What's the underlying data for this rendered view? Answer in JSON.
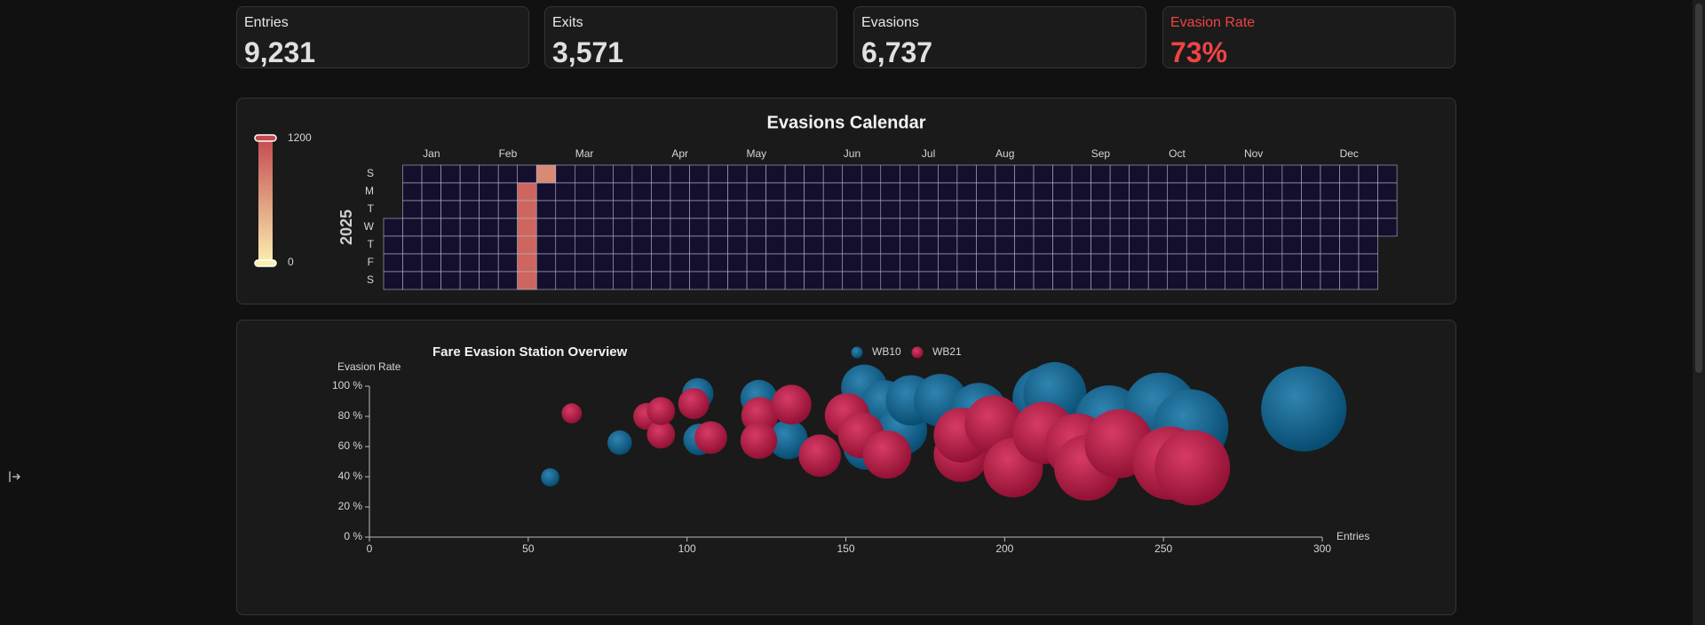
{
  "kpis": [
    {
      "label": "Entries",
      "value": "9,231"
    },
    {
      "label": "Exits",
      "value": "3,571"
    },
    {
      "label": "Evasions",
      "value": "6,737"
    },
    {
      "label": "Evasion Rate",
      "value": "73%"
    }
  ],
  "chart_data": [
    {
      "type": "calendar",
      "title": "Evasions Calendar",
      "year": 2025,
      "months": [
        "Jan",
        "Feb",
        "Mar",
        "Apr",
        "May",
        "Jun",
        "Jul",
        "Aug",
        "Sep",
        "Oct",
        "Nov",
        "Dec"
      ],
      "days": [
        "S",
        "M",
        "T",
        "W",
        "T",
        "F",
        "S"
      ],
      "visual_map": {
        "min": 0,
        "max": 1200,
        "colors": [
          "#fbefb0",
          "#c44a4f"
        ]
      },
      "empty_color": "#140f2c",
      "data": [
        {
          "date": "2025-02-17",
          "value": 1000
        },
        {
          "date": "2025-02-18",
          "value": 1000
        },
        {
          "date": "2025-02-19",
          "value": 1000
        },
        {
          "date": "2025-02-20",
          "value": 1000
        },
        {
          "date": "2025-02-21",
          "value": 1000
        },
        {
          "date": "2025-02-22",
          "value": 1000
        },
        {
          "date": "2025-02-23",
          "value": 737
        }
      ]
    },
    {
      "type": "scatter",
      "title": "Fare Evasion Station Overview",
      "x_label": "Entries",
      "y_label": "Evasion Rate",
      "xlim": [
        0,
        300
      ],
      "xticks": [
        0,
        50,
        100,
        150,
        200,
        250,
        300
      ],
      "ylim": [
        0,
        100
      ],
      "yticks": [
        {
          "value": 0,
          "label": "0 %"
        },
        {
          "value": 20,
          "label": "20 %"
        },
        {
          "value": 40,
          "label": "40 %"
        },
        {
          "value": 60,
          "label": "60 %"
        },
        {
          "value": 80,
          "label": "80 %"
        },
        {
          "value": 100,
          "label": "100 %"
        }
      ],
      "series": [
        {
          "name": "WB10",
          "color": "#0b6ea3",
          "x": [
            56.9,
            78.8,
            103.4,
            103.8,
            122.6,
            131.8,
            155.8,
            156.5,
            162.3,
            167.8,
            170.5,
            179.8,
            191.8,
            212.3,
            215.8,
            232.9,
            249,
            258.6,
            294.2
          ],
          "values": [
            39.6,
            62.6,
            95,
            64.7,
            92,
            64.7,
            99,
            60,
            88,
            71,
            90.6,
            90.6,
            83.5,
            92,
            95,
            78,
            85,
            73,
            85
          ]
        },
        {
          "name": "WB21",
          "color": "#d0184a",
          "x": [
            63.7,
            87.3,
            91.8,
            91.8,
            102.1,
            107.5,
            122.9,
            122.6,
            132.9,
            141.8,
            150.4,
            154.8,
            163,
            186.3,
            186.3,
            196.5,
            202.7,
            212.3,
            222.9,
            226,
            236,
            251.9,
            259.1
          ],
          "values": [
            82,
            80,
            68,
            83.5,
            88.5,
            66,
            80.6,
            64,
            87.8,
            54,
            80.6,
            67.6,
            54.7,
            54.7,
            67.6,
            74.8,
            46,
            69,
            60.4,
            46,
            61.9,
            49,
            46
          ]
        }
      ]
    }
  ]
}
